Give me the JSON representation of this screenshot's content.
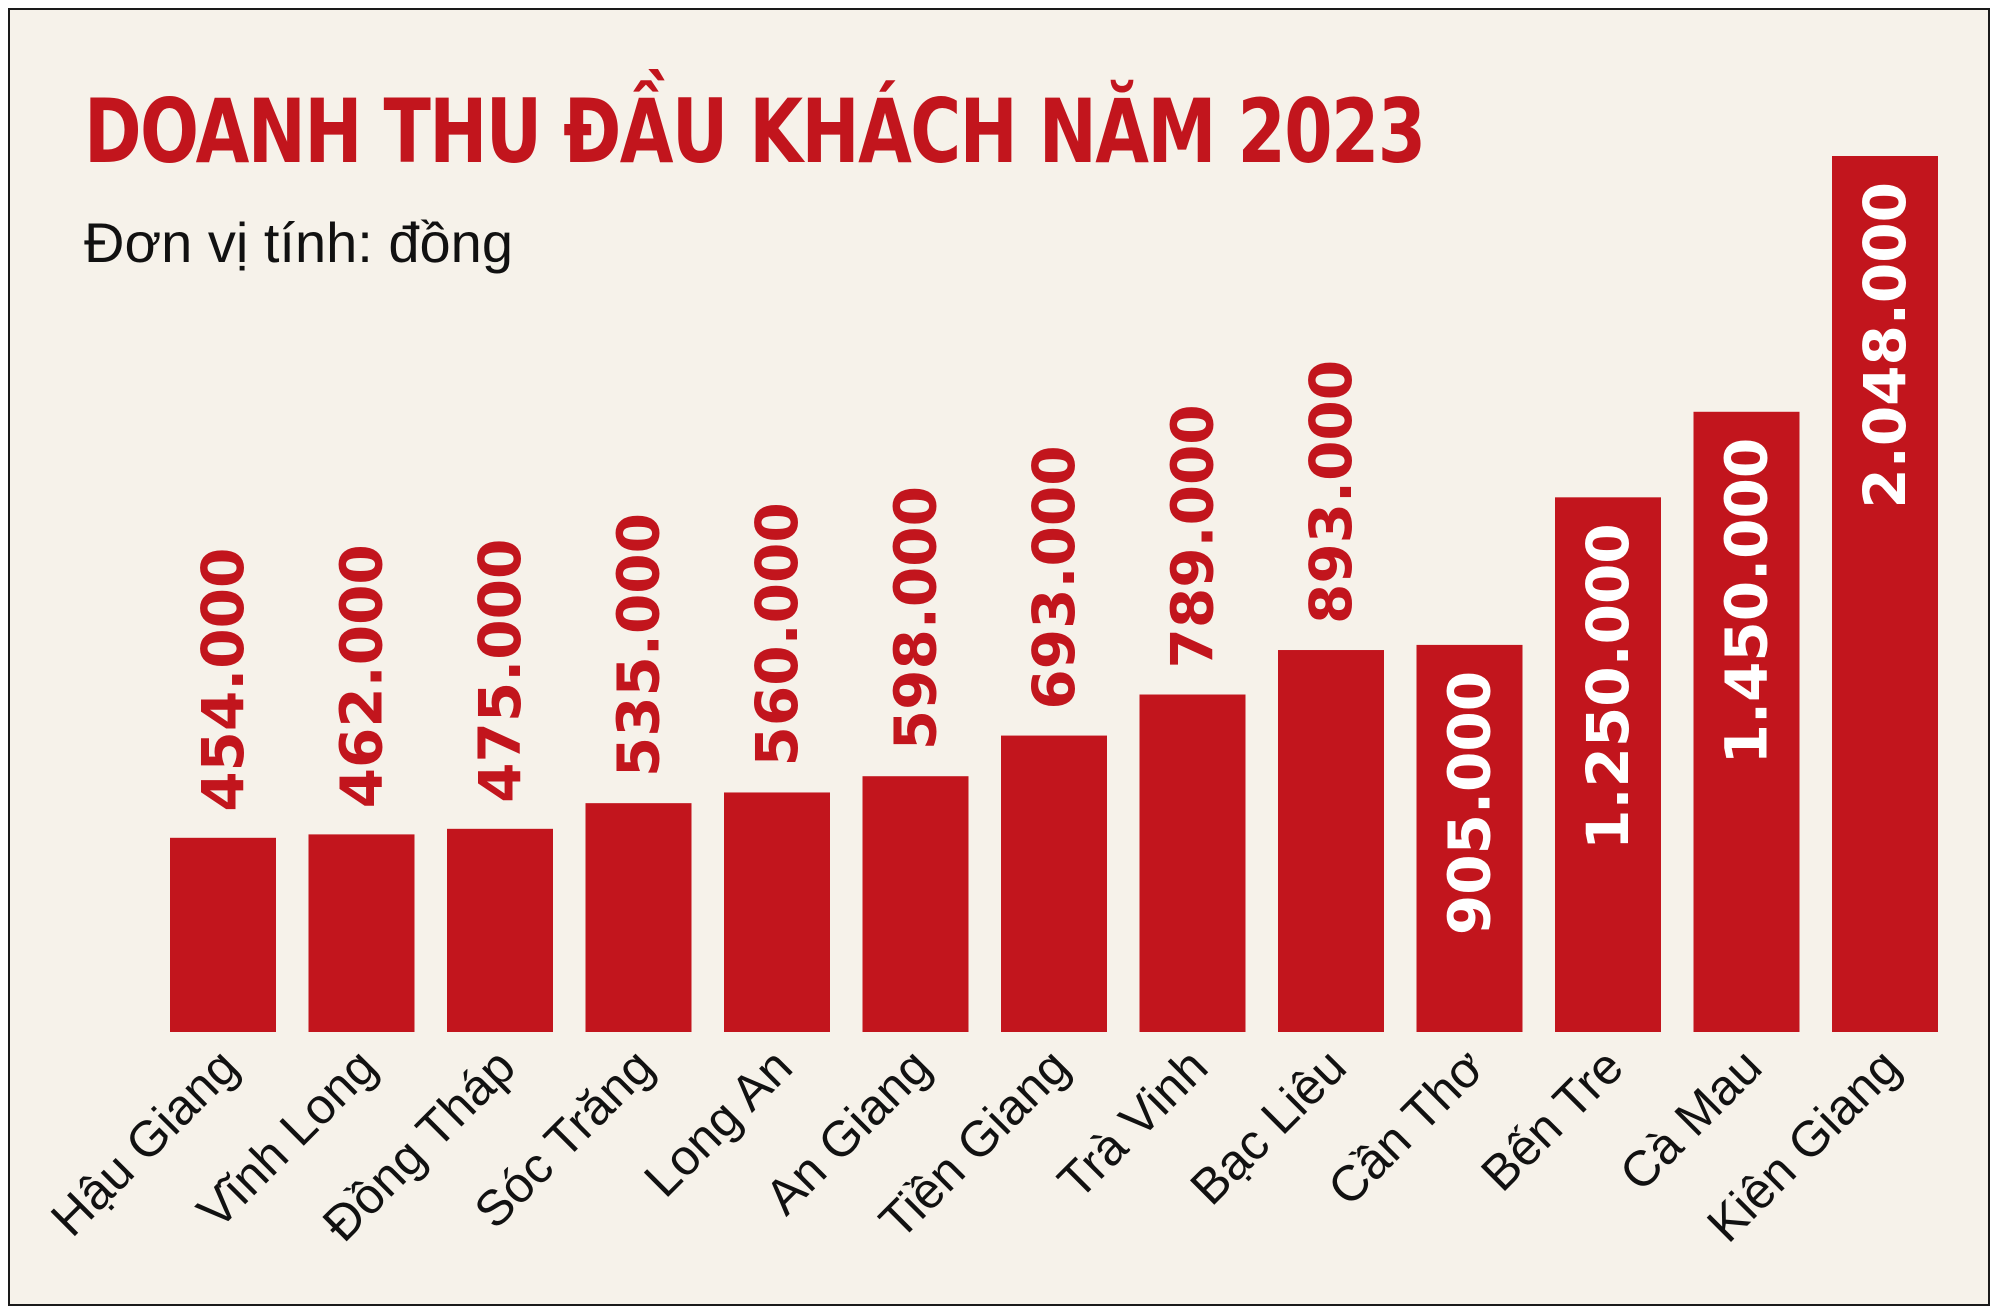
{
  "chart_data": {
    "type": "bar",
    "title": "DOANH THU ĐẦU KHÁCH NĂM 2023",
    "subtitle": "Đơn vị tính: đồng",
    "xlabel": "",
    "ylabel": "",
    "ylim": [
      0,
      2048000
    ],
    "grid": false,
    "legend": "none",
    "bar_color": "#c2151d",
    "label_color_outside": "#c2151d",
    "label_color_inside": "#ffffff",
    "categories": [
      "Hậu Giang",
      "Vĩnh Long",
      "Đồng Tháp",
      "Sóc Trăng",
      "Long An",
      "An Giang",
      "Tiền Giang",
      "Trà Vinh",
      "Bạc Liêu",
      "Cần Thơ",
      "Bến Tre",
      "Cà Mau",
      "Kiên Giang"
    ],
    "values": [
      454000,
      462000,
      475000,
      535000,
      560000,
      598000,
      693000,
      789000,
      893000,
      905000,
      1250000,
      1450000,
      2048000
    ],
    "value_labels": [
      "454.000",
      "462.000",
      "475.000",
      "535.000",
      "560.000",
      "598.000",
      "693.000",
      "789.000",
      "893.000",
      "905.000",
      "1.250.000",
      "1.450.000",
      "2.048.000"
    ],
    "label_inside_bar": [
      false,
      false,
      false,
      false,
      false,
      false,
      false,
      false,
      false,
      true,
      true,
      true,
      true
    ]
  }
}
